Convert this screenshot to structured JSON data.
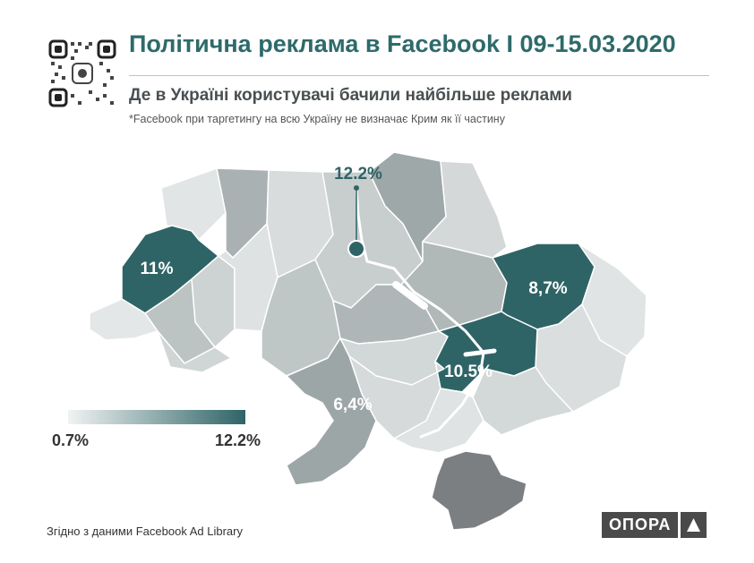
{
  "header": {
    "title": "Політична реклама в Facebook I 09-15.03.2020",
    "subtitle": "Де в Україні користувачі бачили найбільше реклами",
    "footnote": "*Facebook при таргетингу на всю Україну не  визначає Крим  як її частину"
  },
  "qr": {
    "icon": "qr-code-icon"
  },
  "map": {
    "labels": {
      "kyiv": "12.2%",
      "lviv": "11%",
      "kharkiv": "8,7%",
      "dnipro": "10.5%",
      "odesa": "6,4%"
    },
    "highlight_regions": {
      "kyiv": 12.2,
      "lviv": 11,
      "kharkiv": 8.7,
      "dnipro": 10.5,
      "odesa": 6.4
    },
    "colors": {
      "high": "#2f6466",
      "low": "#e6e9e9",
      "crimea": "#7c7f81",
      "water": "#ffffff"
    }
  },
  "legend": {
    "min": "0.7%",
    "max": "12.2%",
    "color_low": "#f1f3f3",
    "color_high": "#2f6466"
  },
  "footer": {
    "source": "Згідно з даними  Facebook Ad Library",
    "logo_text": "ОПОРА",
    "logo_icon": "triangle-up-icon"
  }
}
